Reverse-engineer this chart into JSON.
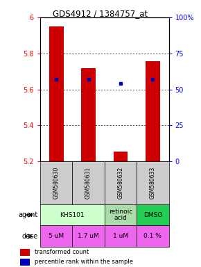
{
  "title": "GDS4912 / 1384757_at",
  "samples": [
    "GSM580630",
    "GSM580631",
    "GSM580632",
    "GSM580633"
  ],
  "bar_bottoms": [
    5.2,
    5.2,
    5.2,
    5.2
  ],
  "bar_tops": [
    5.95,
    5.72,
    5.255,
    5.755
  ],
  "blue_dots": [
    5.655,
    5.655,
    5.635,
    5.655
  ],
  "ylim": [
    5.2,
    6.0
  ],
  "yticks": [
    5.2,
    5.4,
    5.6,
    5.8,
    6.0
  ],
  "ytick_labels": [
    "5.2",
    "5.4",
    "5.6",
    "5.8",
    "6"
  ],
  "y_right_tick_vals": [
    5.2,
    5.4,
    5.6,
    5.8,
    6.0
  ],
  "y_right_labels": [
    "0",
    "25",
    "50",
    "75",
    "100%"
  ],
  "bar_color": "#cc0000",
  "dot_color": "#0000bb",
  "agent_data": [
    {
      "label": "KHS101",
      "start": 0,
      "end": 2,
      "color": "#ccffcc"
    },
    {
      "label": "retinoic\nacid",
      "start": 2,
      "end": 3,
      "color": "#aaddaa"
    },
    {
      "label": "DMSO",
      "start": 3,
      "end": 4,
      "color": "#22cc55"
    }
  ],
  "dose_labels": [
    "5 uM",
    "1.7 uM",
    "1 uM",
    "0.1 %"
  ],
  "dose_color": "#ee66ee",
  "sample_bg": "#cccccc",
  "bar_width": 0.45,
  "hgrid_vals": [
    5.4,
    5.6,
    5.8
  ]
}
